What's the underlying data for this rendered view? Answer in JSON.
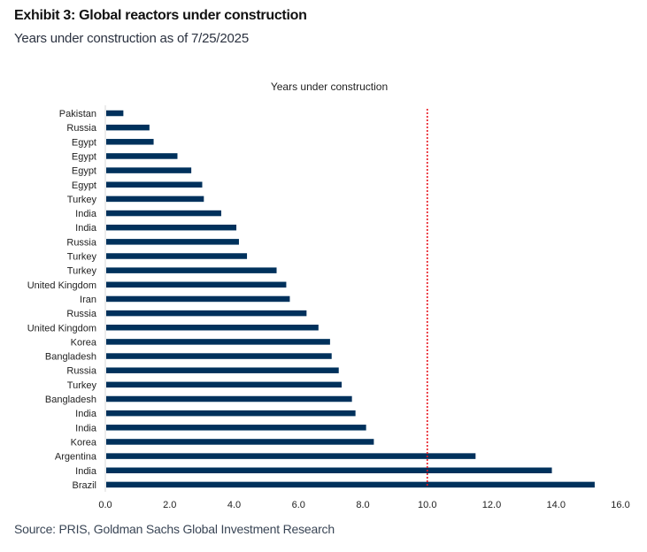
{
  "header": {
    "title": "Exhibit 3: Global reactors under construction",
    "subtitle": "Years under construction as of 7/25/2025"
  },
  "footer": {
    "source": "Source: PRIS, Goldman Sachs Global Investment Research"
  },
  "colors": {
    "bar": "#00315c",
    "reference_line": "#e8141e",
    "axis": "#d9d9d9"
  },
  "chart_data": {
    "type": "bar",
    "orientation": "horizontal",
    "title": "Years under construction",
    "xlabel": "",
    "ylabel": "",
    "xlim": [
      0,
      16
    ],
    "xticks": [
      0,
      2,
      4,
      6,
      8,
      10,
      12,
      14,
      16
    ],
    "xtick_labels": [
      "0.0",
      "2.0",
      "4.0",
      "6.0",
      "8.0",
      "10.0",
      "12.0",
      "14.0",
      "16.0"
    ],
    "grid": false,
    "legend": "none",
    "reference_line": {
      "axis": "x",
      "value": 10.0,
      "style": "dotted"
    },
    "categories": [
      "Pakistan",
      "Russia",
      "Egypt",
      "Egypt",
      "Egypt",
      "Egypt",
      "Turkey",
      "India",
      "India",
      "Russia",
      "Turkey",
      "Turkey",
      "United Kingdom",
      "Iran",
      "Russia",
      "United Kingdom",
      "Korea",
      "Bangladesh",
      "Russia",
      "Turkey",
      "Bangladesh",
      "India",
      "India",
      "Korea",
      "Argentina",
      "India",
      "Brazil"
    ],
    "values": [
      0.56,
      1.37,
      1.5,
      2.24,
      2.67,
      3.01,
      3.06,
      3.6,
      4.07,
      4.15,
      4.4,
      5.32,
      5.62,
      5.73,
      6.25,
      6.62,
      6.98,
      7.03,
      7.25,
      7.34,
      7.66,
      7.77,
      8.1,
      8.34,
      11.5,
      13.87,
      15.2
    ]
  }
}
